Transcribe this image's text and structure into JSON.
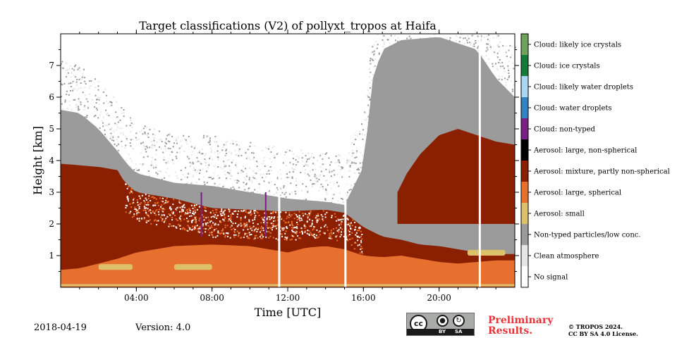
{
  "chart_data": {
    "type": "heatmap",
    "title": "Target classifications (V2) of pollyxt_tropos at Haifa",
    "xlabel": "Time [UTC]",
    "ylabel": "Height [km]",
    "xlim_hours": [
      0,
      24
    ],
    "ylim_km": [
      0,
      8
    ],
    "x_ticks": [
      {
        "hour": 4,
        "label": "04:00"
      },
      {
        "hour": 8,
        "label": "08:00"
      },
      {
        "hour": 12,
        "label": "12:00"
      },
      {
        "hour": 16,
        "label": "16:00"
      },
      {
        "hour": 20,
        "label": "20:00"
      }
    ],
    "y_ticks": [
      {
        "km": 1,
        "label": "1"
      },
      {
        "km": 2,
        "label": "2"
      },
      {
        "km": 3,
        "label": "3"
      },
      {
        "km": 4,
        "label": "4"
      },
      {
        "km": 5,
        "label": "5"
      },
      {
        "km": 6,
        "label": "6"
      },
      {
        "km": 7,
        "label": "7"
      }
    ],
    "classes": [
      {
        "label": "Cloud: likely ice crystals",
        "color": "#6fa25a"
      },
      {
        "label": "Cloud: ice crystals",
        "color": "#157b3a"
      },
      {
        "label": "Cloud: likely water droplets",
        "color": "#acd6f2"
      },
      {
        "label": "Cloud: water droplets",
        "color": "#3582c0"
      },
      {
        "label": "Cloud: non-typed",
        "color": "#7a1f86"
      },
      {
        "label": "Aerosol: large, non-spherical",
        "color": "#000000"
      },
      {
        "label": "Aerosol: mixture, partly non-spherical",
        "color": "#8b2000"
      },
      {
        "label": "Aerosol: large, spherical",
        "color": "#e8702e"
      },
      {
        "label": "Aerosol: small",
        "color": "#dcc16a"
      },
      {
        "label": "Non-typed particles/low conc.",
        "color": "#9b9b9b"
      },
      {
        "label": "Clean atmosphere",
        "color": "#e6e6e6"
      },
      {
        "label": "No signal",
        "color": "#ffffff"
      }
    ],
    "layers": {
      "mixture_top_km": [
        [
          0,
          3.9
        ],
        [
          2,
          3.8
        ],
        [
          3,
          3.7
        ],
        [
          3.4,
          3.3
        ],
        [
          4,
          3.0
        ],
        [
          6,
          2.8
        ],
        [
          8,
          2.5
        ],
        [
          10,
          2.45
        ],
        [
          11.5,
          2.4
        ],
        [
          12,
          2.4
        ],
        [
          14,
          2.45
        ],
        [
          15,
          2.35
        ],
        [
          16,
          1.9
        ],
        [
          17,
          1.6
        ],
        [
          18,
          1.5
        ],
        [
          19,
          1.35
        ],
        [
          20,
          1.3
        ],
        [
          21,
          1.2
        ],
        [
          22,
          1.1
        ],
        [
          23,
          1.05
        ],
        [
          24,
          1.05
        ]
      ],
      "mixture_top_upper_km": [
        [
          17.8,
          3.0
        ],
        [
          18.3,
          3.6
        ],
        [
          19,
          4.2
        ],
        [
          20,
          4.8
        ],
        [
          21,
          5.0
        ],
        [
          22,
          4.8
        ],
        [
          23,
          4.6
        ],
        [
          24,
          4.5
        ]
      ],
      "spherical_top_km": [
        [
          0,
          0.55
        ],
        [
          1,
          0.6
        ],
        [
          2,
          0.75
        ],
        [
          3,
          0.9
        ],
        [
          4,
          1.1
        ],
        [
          6,
          1.3
        ],
        [
          8,
          1.35
        ],
        [
          10,
          1.3
        ],
        [
          11,
          1.2
        ],
        [
          12,
          1.1
        ],
        [
          13,
          1.25
        ],
        [
          14,
          1.3
        ],
        [
          15,
          1.2
        ],
        [
          16,
          1.0
        ],
        [
          17,
          0.95
        ],
        [
          18,
          1.0
        ],
        [
          19,
          0.9
        ],
        [
          20,
          0.8
        ],
        [
          21,
          0.75
        ],
        [
          22,
          0.8
        ],
        [
          23,
          0.85
        ],
        [
          24,
          0.85
        ]
      ],
      "nontyped_top_km": [
        [
          0,
          5.6
        ],
        [
          1,
          5.5
        ],
        [
          2,
          5.0
        ],
        [
          3,
          4.3
        ],
        [
          3.5,
          3.9
        ],
        [
          4,
          3.6
        ],
        [
          6,
          3.3
        ],
        [
          8,
          3.2
        ],
        [
          10,
          3.0
        ],
        [
          12,
          2.8
        ],
        [
          14,
          2.7
        ],
        [
          15,
          2.6
        ],
        [
          16,
          3.8
        ],
        [
          16.5,
          6.6
        ],
        [
          17,
          7.5
        ],
        [
          18,
          7.8
        ],
        [
          20,
          7.9
        ],
        [
          22,
          7.5
        ],
        [
          23,
          6.6
        ],
        [
          24,
          6.0
        ]
      ],
      "small_patches_hours": [
        [
          2.0,
          3.8
        ],
        [
          6.0,
          8.0
        ],
        [
          21.5,
          23.5
        ]
      ],
      "data_gaps_hours": [
        11.55,
        15.05,
        22.15
      ]
    },
    "footer_date": "2018-04-19",
    "footer_version": "Version: 4.0"
  },
  "footer": {
    "preliminary_line1": "Preliminary",
    "preliminary_line2": "Results.",
    "copyright_line1": "© TROPOS 2024.",
    "copyright_line2": "CC BY SA 4.0 License.",
    "cc_label": "cc",
    "by_label": "BY",
    "sa_label": "SA"
  }
}
